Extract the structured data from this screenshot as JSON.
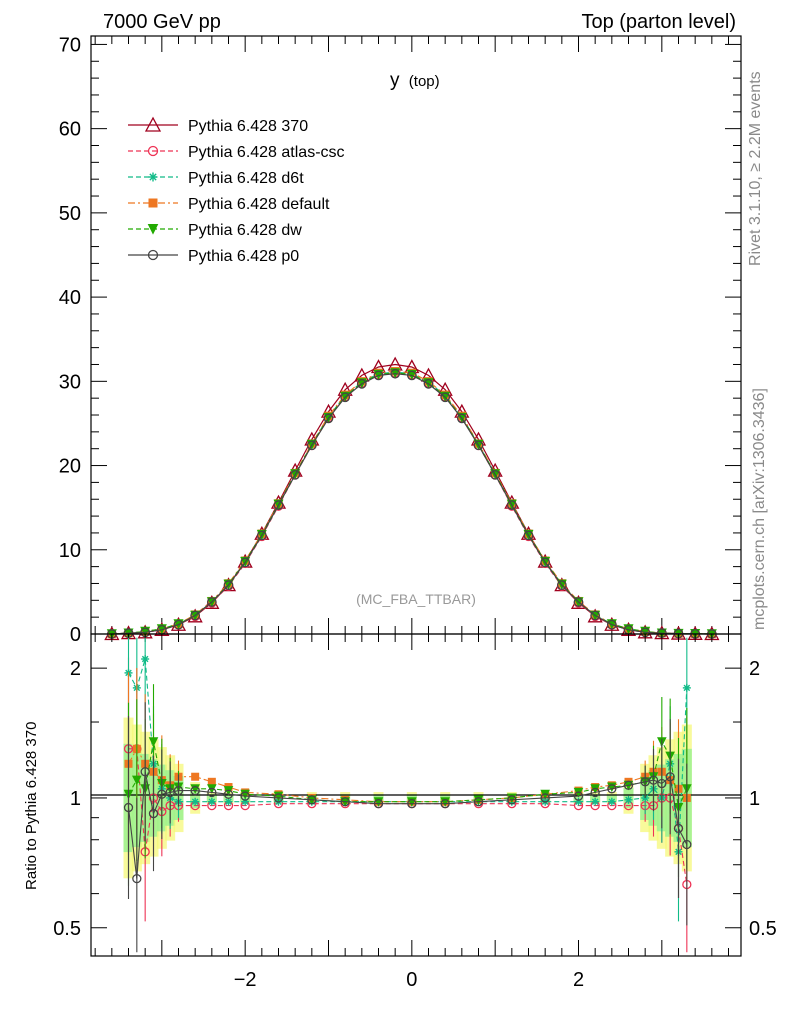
{
  "header": {
    "left": "7000 GeV pp",
    "right": "Top (parton level)"
  },
  "side_text": {
    "top": "Rivet 3.1.10, ≥ 2.2M events",
    "bottom": "mcplots.cern.ch [arXiv:1306.3436]"
  },
  "chart_data": [
    {
      "type": "line",
      "title": "y",
      "title_sub": "(top)",
      "watermark": "(MC_FBA_TTBAR)",
      "xlim": [
        -3.85,
        3.95
      ],
      "ylim": [
        0,
        71
      ],
      "yticks": [
        "0",
        "10",
        "20",
        "30",
        "40",
        "50",
        "60",
        "70"
      ],
      "grid": false,
      "legend_position": "top-left",
      "x": [
        -3.6,
        -3.4,
        -3.2,
        -3.0,
        -2.8,
        -2.6,
        -2.4,
        -2.2,
        -2.0,
        -1.8,
        -1.6,
        -1.4,
        -1.2,
        -1.0,
        -0.8,
        -0.6,
        -0.4,
        -0.2,
        0.0,
        0.2,
        0.4,
        0.6,
        0.8,
        1.0,
        1.2,
        1.4,
        1.6,
        1.8,
        2.0,
        2.2,
        2.4,
        2.6,
        2.8,
        3.0,
        3.2,
        3.4,
        3.6
      ],
      "series": [
        {
          "name": "Pythia 6.428 370",
          "color": "#a0001e",
          "style": "solid",
          "marker": "triangle-open",
          "values": [
            0.0,
            0.1,
            0.2,
            0.5,
            1.1,
            2.1,
            3.7,
            5.8,
            8.6,
            11.9,
            15.6,
            19.4,
            23.1,
            26.4,
            29.0,
            30.7,
            31.7,
            32.0,
            31.7,
            30.7,
            29.0,
            26.4,
            23.1,
            19.4,
            15.6,
            11.9,
            8.6,
            5.8,
            3.7,
            2.1,
            1.1,
            0.5,
            0.2,
            0.1,
            0.05,
            0.02,
            0.0
          ]
        },
        {
          "name": "Pythia 6.428 atlas-csc",
          "color": "#ee3355",
          "style": "dashed",
          "marker": "circle-open",
          "values": [
            0.0,
            0.1,
            0.2,
            0.5,
            1.1,
            2.1,
            3.7,
            5.7,
            8.4,
            11.6,
            15.2,
            18.9,
            22.4,
            25.7,
            28.2,
            29.8,
            30.8,
            31.0,
            30.8,
            29.8,
            28.2,
            25.7,
            22.4,
            18.9,
            15.2,
            11.6,
            8.4,
            5.7,
            3.7,
            2.1,
            1.1,
            0.5,
            0.2,
            0.1,
            0.05,
            0.02,
            0.0
          ]
        },
        {
          "name": "Pythia 6.428 d6t",
          "color": "#11bb88",
          "style": "dashed",
          "marker": "asterisk",
          "values": [
            0.0,
            0.1,
            0.3,
            0.6,
            1.2,
            2.2,
            3.8,
            5.8,
            8.5,
            11.7,
            15.3,
            19.0,
            22.5,
            25.8,
            28.3,
            29.9,
            30.9,
            31.1,
            30.9,
            29.9,
            28.3,
            25.8,
            22.5,
            19.0,
            15.3,
            11.7,
            8.5,
            5.8,
            3.8,
            2.2,
            1.2,
            0.6,
            0.3,
            0.1,
            0.05,
            0.03,
            0.0
          ]
        },
        {
          "name": "Pythia 6.428 default",
          "color": "#ee7722",
          "style": "dashdot",
          "marker": "square",
          "values": [
            0.0,
            0.1,
            0.3,
            0.6,
            1.2,
            2.3,
            3.9,
            6.0,
            8.7,
            11.9,
            15.5,
            19.1,
            22.6,
            25.9,
            28.4,
            30.0,
            31.0,
            31.2,
            31.0,
            30.0,
            28.4,
            25.9,
            22.6,
            19.1,
            15.5,
            11.9,
            8.7,
            6.0,
            3.9,
            2.3,
            1.2,
            0.6,
            0.3,
            0.1,
            0.05,
            0.02,
            0.0
          ]
        },
        {
          "name": "Pythia 6.428 dw",
          "color": "#22aa00",
          "style": "dashed",
          "marker": "triangle-down",
          "values": [
            0.0,
            0.1,
            0.3,
            0.6,
            1.2,
            2.2,
            3.8,
            5.9,
            8.6,
            11.8,
            15.4,
            19.0,
            22.5,
            25.7,
            28.2,
            29.8,
            30.8,
            31.0,
            30.8,
            29.8,
            28.2,
            25.7,
            22.5,
            19.0,
            15.4,
            11.8,
            8.6,
            5.9,
            3.8,
            2.2,
            1.2,
            0.6,
            0.3,
            0.1,
            0.05,
            0.03,
            0.0
          ]
        },
        {
          "name": "Pythia 6.428 p0",
          "color": "#444444",
          "style": "solid",
          "marker": "circle-open",
          "values": [
            0.0,
            0.1,
            0.2,
            0.5,
            1.1,
            2.2,
            3.8,
            5.8,
            8.5,
            11.7,
            15.3,
            18.9,
            22.4,
            25.6,
            28.1,
            29.7,
            30.7,
            30.9,
            30.7,
            29.7,
            28.1,
            25.6,
            22.4,
            18.9,
            15.3,
            11.7,
            8.5,
            5.8,
            3.8,
            2.2,
            1.1,
            0.5,
            0.2,
            0.1,
            0.05,
            0.02,
            0.0
          ]
        }
      ]
    },
    {
      "type": "line",
      "ylabel": "Ratio to Pythia 6.428 370",
      "xlim": [
        -3.85,
        3.95
      ],
      "ylim": [
        0.43,
        2.4
      ],
      "y_scale": "log",
      "yticks": [
        "0.5",
        "1",
        "2"
      ],
      "xticks": [
        "−2",
        "0",
        "2"
      ],
      "reference_line": 1,
      "x": [
        -3.4,
        -3.3,
        -3.2,
        -3.1,
        -3.0,
        -2.9,
        -2.8,
        -2.6,
        -2.4,
        -2.2,
        -2.0,
        -1.6,
        -1.2,
        -0.8,
        -0.4,
        0.0,
        0.4,
        0.8,
        1.2,
        1.6,
        2.0,
        2.2,
        2.4,
        2.6,
        2.8,
        2.9,
        3.0,
        3.1,
        3.2,
        3.3
      ],
      "series": [
        {
          "name": "Pythia 6.428 atlas-csc",
          "values": [
            1.3,
            1.3,
            0.75,
            1.0,
            0.93,
            0.96,
            0.96,
            0.96,
            0.96,
            0.96,
            0.96,
            0.97,
            0.97,
            0.97,
            0.97,
            0.97,
            0.97,
            0.97,
            0.97,
            0.97,
            0.96,
            0.96,
            0.96,
            0.96,
            0.96,
            0.96,
            1.0,
            1.0,
            0.85,
            0.63
          ]
        },
        {
          "name": "Pythia 6.428 d6t",
          "values": [
            1.95,
            1.8,
            2.1,
            1.2,
            1.05,
            1.0,
            0.98,
            0.98,
            0.98,
            0.98,
            0.98,
            0.98,
            0.98,
            0.98,
            0.98,
            0.98,
            0.98,
            0.98,
            0.98,
            0.98,
            0.98,
            0.98,
            0.98,
            0.99,
            1.0,
            1.05,
            1.0,
            1.2,
            0.75,
            1.8
          ]
        },
        {
          "name": "Pythia 6.428 default",
          "values": [
            1.2,
            1.3,
            1.2,
            1.15,
            1.1,
            1.07,
            1.12,
            1.12,
            1.09,
            1.06,
            1.03,
            1.02,
            1.0,
            0.99,
            0.98,
            0.98,
            0.98,
            0.99,
            1.0,
            1.02,
            1.04,
            1.06,
            1.07,
            1.09,
            1.12,
            1.15,
            1.15,
            1.1,
            1.05,
            1.0
          ]
        },
        {
          "name": "Pythia 6.428 dw",
          "values": [
            1.02,
            1.1,
            1.05,
            1.35,
            1.08,
            1.05,
            1.06,
            1.05,
            1.05,
            1.04,
            1.02,
            1.01,
            0.99,
            0.98,
            0.98,
            0.98,
            0.98,
            0.99,
            1.0,
            1.02,
            1.03,
            1.05,
            1.06,
            1.07,
            1.09,
            1.12,
            1.35,
            1.25,
            0.95,
            1.05
          ]
        },
        {
          "name": "Pythia 6.428 p0",
          "values": [
            0.95,
            0.65,
            1.15,
            0.92,
            1.02,
            1.03,
            1.04,
            1.04,
            1.03,
            1.02,
            1.01,
            1.0,
            0.99,
            0.98,
            0.97,
            0.97,
            0.97,
            0.98,
            0.99,
            1.0,
            1.01,
            1.03,
            1.05,
            1.07,
            1.09,
            1.1,
            1.08,
            1.12,
            0.85,
            0.78
          ]
        }
      ]
    }
  ]
}
